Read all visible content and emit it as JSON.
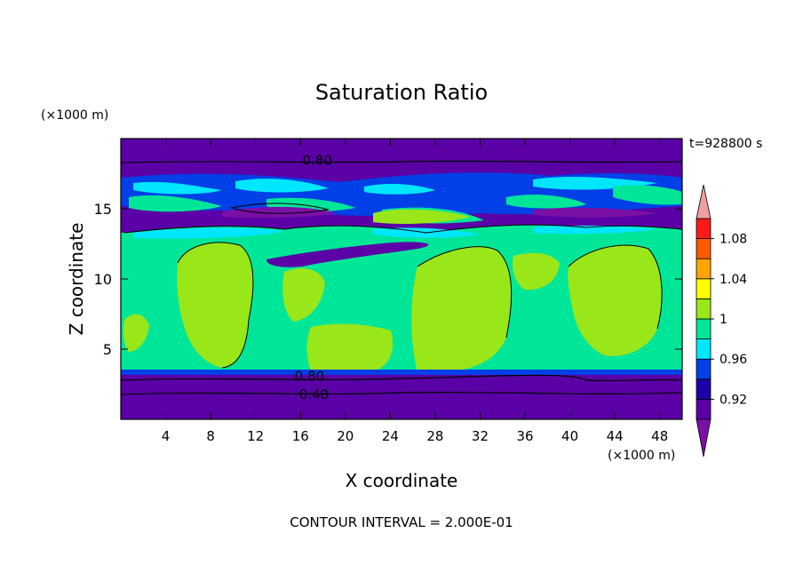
{
  "chart_data": {
    "type": "heatmap",
    "title": "Saturation Ratio",
    "xlabel": "X coordinate",
    "ylabel": "Z coordinate",
    "x_unit": "(×1000 m)",
    "y_unit": "(×1000 m)",
    "time_label": "t=928800 s",
    "footer": "CONTOUR INTERVAL = 2.000E-01",
    "xlim": [
      0,
      50
    ],
    "ylim": [
      0,
      20
    ],
    "x_ticks": [
      4,
      8,
      12,
      16,
      20,
      24,
      28,
      32,
      36,
      40,
      44,
      48
    ],
    "y_ticks": [
      5,
      10,
      15
    ],
    "contour_labels": [
      {
        "text": "0.80",
        "x": 17.5,
        "y": 18.4
      },
      {
        "text": "0.80",
        "x": 16.8,
        "y": 3.0
      },
      {
        "text": "0.40",
        "x": 17.2,
        "y": 1.7
      }
    ],
    "colorbar": {
      "levels": [
        0.9,
        0.92,
        0.94,
        0.96,
        0.98,
        1.0,
        1.02,
        1.04,
        1.06,
        1.08,
        1.1
      ],
      "tick_labels": [
        "0.92",
        "0.96",
        "1",
        "1.04",
        "1.08"
      ],
      "colors": [
        "#5a00a6",
        "#1d00a6",
        "#0040e6",
        "#00e6ff",
        "#00e699",
        "#99e619",
        "#ffff00",
        "#ffa500",
        "#ff5a00",
        "#ff1a1a"
      ],
      "under_color": "#7a10a6",
      "over_color": "#f0a0a0"
    }
  }
}
